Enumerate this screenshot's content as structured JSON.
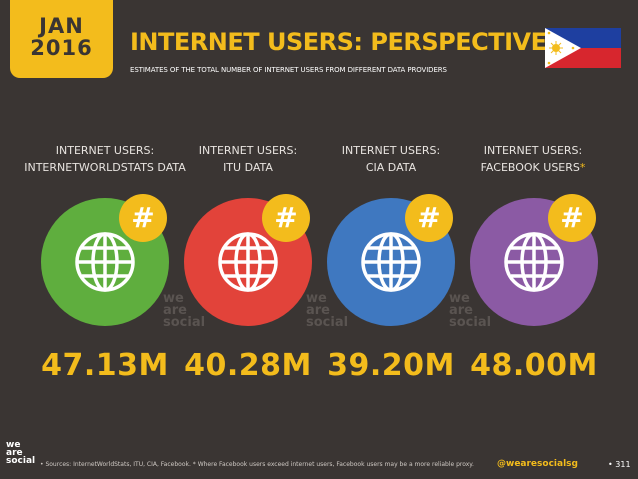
{
  "header": {
    "month": "JAN",
    "year": "2016",
    "title": "INTERNET USERS: PERSPECTIVE",
    "subtitle": "ESTIMATES OF THE TOTAL NUMBER OF INTERNET USERS FROM DIFFERENT DATA PROVIDERS"
  },
  "colors": {
    "background": "#3a3533",
    "accent": "#f3bc1c",
    "green": "#5fae3e",
    "red": "#e2433a",
    "blue": "#3f78c0",
    "purple": "#8b5aa4"
  },
  "hash_symbol": "#",
  "watermark": {
    "l1": "we",
    "l2": "are",
    "l3": "social"
  },
  "sources": [
    {
      "label_line1": "INTERNET USERS:",
      "label_line2": "INTERNETWORLDSTATS DATA",
      "asterisk": "",
      "value": "47.13M",
      "color": "#5fae3e",
      "icon": "globe-icon"
    },
    {
      "label_line1": "INTERNET USERS:",
      "label_line2": "ITU DATA",
      "asterisk": "",
      "value": "40.28M",
      "color": "#e2433a",
      "icon": "globe-icon"
    },
    {
      "label_line1": "INTERNET USERS:",
      "label_line2": "CIA DATA",
      "asterisk": "",
      "value": "39.20M",
      "color": "#3f78c0",
      "icon": "globe-icon"
    },
    {
      "label_line1": "INTERNET USERS:",
      "label_line2": "FACEBOOK USERS",
      "asterisk": "*",
      "value": "48.00M",
      "color": "#8b5aa4",
      "icon": "globe-icon"
    }
  ],
  "footer": {
    "logo_l1": "we",
    "logo_l2": "are",
    "logo_l3": "social",
    "footnote": "•  Sources: InternetWorldStats, ITU, CIA, Facebook. * Where Facebook users exceed internet users, Facebook users may be a more reliable proxy.",
    "handle": "@wearesocialsg",
    "page_number": "• 311"
  },
  "flag_icon": "philippines-flag-icon"
}
